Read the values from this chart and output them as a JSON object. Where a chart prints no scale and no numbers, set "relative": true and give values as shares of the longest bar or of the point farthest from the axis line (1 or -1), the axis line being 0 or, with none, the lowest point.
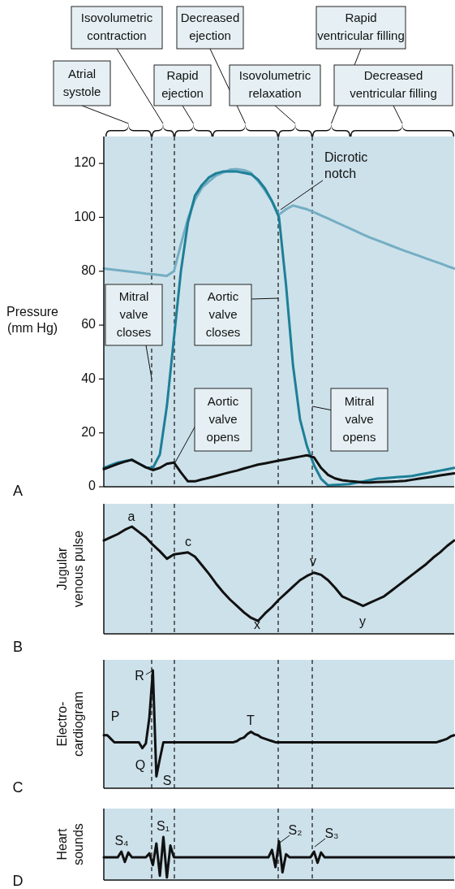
{
  "chart_data": [
    {
      "type": "line",
      "grid": "x",
      "ylabel": "Pressure\n(mm Hg)",
      "ylim": [
        0,
        130
      ],
      "yticks": [
        0,
        20,
        40,
        60,
        80,
        100,
        120
      ],
      "tick_labels": "y",
      "categories": [
        null,
        null,
        null,
        null,
        null,
        null,
        null,
        null,
        null,
        null,
        null,
        null,
        null,
        null,
        null,
        null,
        null,
        null,
        null,
        null,
        null,
        null,
        null,
        null,
        null,
        null,
        null,
        null,
        null,
        null,
        null,
        null,
        null,
        null,
        null,
        null,
        null,
        null,
        null,
        null,
        null,
        null,
        null,
        null,
        null,
        null,
        null,
        null,
        null,
        null,
        null
      ],
      "series": [
        {
          "color": "#74aec3",
          "values": [
            81,
            80.7,
            80.4,
            80.1,
            79.8,
            79.5,
            79.1,
            78.9,
            78.6,
            78.3,
            80,
            90,
            99.5,
            106.5,
            111,
            113.3,
            115.5,
            116.6,
            117.7,
            117.9,
            117.5,
            116.5,
            113.5,
            110,
            106,
            101,
            103,
            104.4,
            103.7,
            103,
            101.9,
            100.7,
            99.6,
            98.4,
            97.2,
            96,
            94.8,
            93.6,
            92.5,
            91.5,
            90.5,
            89.5,
            88.5,
            87.5,
            86.6,
            85.7,
            84.7,
            83.8,
            82.9,
            81.9,
            81
          ]
        },
        {
          "color": "#1d7f97",
          "values": [
            7,
            8,
            9,
            9.5,
            10,
            8.6,
            7.2,
            7,
            12,
            30,
            55,
            80,
            98,
            108,
            112,
            114.8,
            116.3,
            117,
            117,
            117,
            116.5,
            116,
            114,
            110.7,
            106,
            100,
            75,
            45,
            25,
            15,
            8,
            3,
            0.5,
            0.7,
            0.8,
            1,
            1.5,
            2,
            2.5,
            3,
            3.2,
            3.4,
            3.6,
            3.8,
            4,
            4.5,
            5,
            5.5,
            6,
            6.5,
            7
          ]
        },
        {
          "color": "#111111",
          "values": [
            6.5,
            7.5,
            8.5,
            9.3,
            10,
            8.6,
            7.2,
            6.2,
            7,
            8.5,
            9,
            5.3,
            2,
            2,
            2.7,
            3.3,
            4,
            4.7,
            5.4,
            6,
            6.8,
            7.5,
            8.2,
            8.7,
            9.2,
            9.7,
            10.2,
            10.7,
            11.2,
            11.7,
            10.9,
            7,
            4.4,
            3.1,
            2.4,
            2.1,
            1.9,
            1.6,
            1.6,
            1.7,
            1.8,
            1.9,
            2,
            2.2,
            2.6,
            3,
            3.4,
            3.8,
            4.2,
            4.6,
            5
          ]
        }
      ],
      "annotations": [
        "Atrial\nsystole",
        "Isovolumetric\ncontraction",
        "Rapid\nejection",
        "Decreased\nejection",
        "Isovolumetric\nrelaxation",
        "Rapid\nventricular filling",
        "Decreased\nventricular filling",
        "Dicrotic\nnotch",
        "Mitral\nvalve\ncloses",
        "Aortic\nvalve\ncloses",
        "Aortic\nvalve\nopens",
        "Mitral\nvalve\nopens",
        "A"
      ]
    },
    {
      "type": "line",
      "grid": "x",
      "relative": true,
      "ylabel": "Jugular\nvenous pulse",
      "tick_labels": false,
      "categories": [
        null,
        null,
        null,
        null,
        null,
        null,
        null,
        null,
        null,
        null,
        null,
        null,
        null,
        null,
        null,
        null,
        null,
        null,
        null,
        null,
        null,
        null,
        null,
        null,
        null,
        null,
        null,
        null,
        null,
        null,
        null,
        null,
        null,
        null,
        null,
        null,
        null,
        null,
        null,
        null,
        null,
        null,
        null,
        null,
        null,
        null,
        null,
        null,
        null,
        null,
        null
      ],
      "series": [
        {
          "color": "#111111",
          "values": [
            0.87,
            0.9,
            0.93,
            0.97,
            1,
            0.95,
            0.9,
            0.83,
            0.77,
            0.7,
            0.74,
            0.75,
            0.76,
            0.72,
            0.64,
            0.56,
            0.47,
            0.39,
            0.32,
            0.26,
            0.2,
            0.15,
            0.12,
            0.19,
            0.25,
            0.32,
            0.38,
            0.44,
            0.5,
            0.54,
            0.57,
            0.55,
            0.5,
            0.43,
            0.35,
            0.32,
            0.29,
            0.26,
            0.29,
            0.32,
            0.35,
            0.4,
            0.45,
            0.5,
            0.55,
            0.6,
            0.65,
            0.71,
            0.76,
            0.82,
            0.87
          ]
        }
      ],
      "annotations": [
        "a",
        "c",
        "x",
        "v",
        "y",
        "B"
      ]
    },
    {
      "type": "line",
      "grid": "x",
      "relative": true,
      "ylabel": "Electro-\ncardiogram",
      "tick_labels": false,
      "categories": [
        null,
        null,
        null,
        null,
        null,
        null,
        null,
        null,
        null,
        null,
        null,
        null,
        null,
        null,
        null,
        null,
        null,
        null,
        null,
        null,
        null,
        null,
        null,
        null,
        null,
        null,
        null,
        null,
        null,
        null,
        null,
        null,
        null,
        null,
        null,
        null,
        null,
        null,
        null,
        null,
        null,
        null,
        null,
        null,
        null,
        null,
        null,
        null,
        null,
        null,
        null,
        null,
        null,
        null,
        null,
        null,
        null,
        null,
        null,
        null,
        null,
        null,
        null,
        null,
        null,
        null,
        null,
        null,
        null,
        null,
        null,
        null,
        null,
        null,
        null,
        null,
        null,
        null,
        null,
        null,
        null,
        null,
        null,
        null,
        null,
        null,
        null,
        null,
        null,
        null,
        null,
        null,
        null,
        null,
        null,
        null,
        null,
        null,
        null,
        null,
        null
      ],
      "series": [
        {
          "color": "#111111",
          "values": [
            0.45,
            0.45,
            0.42,
            0.39,
            0.39,
            0.39,
            0.39,
            0.39,
            0.39,
            0.39,
            0.39,
            0.34,
            0.38,
            0.6,
            1,
            0.1,
            0.25,
            0.39,
            0.39,
            0.39,
            0.39,
            0.39,
            0.39,
            0.39,
            0.39,
            0.39,
            0.39,
            0.39,
            0.39,
            0.39,
            0.39,
            0.39,
            0.39,
            0.39,
            0.39,
            0.39,
            0.39,
            0.39,
            0.4,
            0.42,
            0.43,
            0.46,
            0.48,
            0.46,
            0.45,
            0.43,
            0.42,
            0.41,
            0.4,
            0.39,
            0.39,
            0.39,
            0.39,
            0.39,
            0.39,
            0.39,
            0.39,
            0.39,
            0.39,
            0.39,
            0.39,
            0.39,
            0.39,
            0.39,
            0.39,
            0.39,
            0.39,
            0.39,
            0.39,
            0.39,
            0.39,
            0.39,
            0.39,
            0.39,
            0.39,
            0.39,
            0.39,
            0.39,
            0.39,
            0.39,
            0.39,
            0.39,
            0.39,
            0.39,
            0.39,
            0.39,
            0.39,
            0.39,
            0.39,
            0.39,
            0.39,
            0.39,
            0.39,
            0.39,
            0.39,
            0.39,
            0.4,
            0.41,
            0.42,
            0.44,
            0.45
          ]
        }
      ],
      "annotations": [
        "P",
        "R",
        "Q",
        "S",
        "T",
        "C"
      ]
    },
    {
      "type": "line",
      "grid": "x",
      "relative": true,
      "ylabel": "Heart\nsounds",
      "tick_labels": false,
      "categories": [
        null,
        null,
        null,
        null,
        null,
        null,
        null,
        null,
        null,
        null,
        null,
        null,
        null,
        null,
        null,
        null,
        null,
        null,
        null,
        null,
        null,
        null,
        null,
        null,
        null,
        null,
        null,
        null,
        null,
        null,
        null,
        null,
        null,
        null,
        null,
        null,
        null,
        null,
        null,
        null,
        null,
        null,
        null,
        null,
        null,
        null,
        null,
        null,
        null,
        null,
        null,
        null,
        null,
        null,
        null,
        null,
        null,
        null,
        null,
        null,
        null,
        null,
        null,
        null,
        null,
        null,
        null,
        null,
        null,
        null,
        null,
        null,
        null,
        null,
        null,
        null,
        null,
        null,
        null,
        null,
        null,
        null,
        null,
        null,
        null,
        null,
        null,
        null,
        null,
        null,
        null,
        null,
        null,
        null,
        null,
        null,
        null,
        null,
        null,
        null,
        null
      ],
      "series": [
        {
          "color": "#111111",
          "values": [
            0.53,
            0.53,
            0.53,
            0.53,
            0.53,
            0.66,
            0.42,
            0.64,
            0.53,
            0.53,
            0.53,
            0.53,
            0.53,
            0.62,
            0.35,
            0.85,
            0.1,
            1,
            0.06,
            0.8,
            0.53,
            0.53,
            0.53,
            0.53,
            0.53,
            0.53,
            0.53,
            0.53,
            0.53,
            0.53,
            0.53,
            0.53,
            0.53,
            0.53,
            0.53,
            0.53,
            0.53,
            0.53,
            0.53,
            0.53,
            0.53,
            0.53,
            0.53,
            0.53,
            0.53,
            0.53,
            0.53,
            0.53,
            0.7,
            0.3,
            0.9,
            0.18,
            0.6,
            0.53,
            0.53,
            0.53,
            0.53,
            0.53,
            0.53,
            0.53,
            0.66,
            0.4,
            0.64,
            0.53,
            0.53,
            0.53,
            0.53,
            0.53,
            0.53,
            0.53,
            0.53,
            0.53,
            0.53,
            0.53,
            0.53,
            0.53,
            0.53,
            0.53,
            0.53,
            0.53,
            0.53,
            0.53,
            0.53,
            0.53,
            0.53,
            0.53,
            0.53,
            0.53,
            0.53,
            0.53,
            0.53,
            0.53,
            0.53,
            0.53,
            0.53,
            0.53,
            0.53,
            0.53,
            0.53,
            0.53,
            0.53
          ]
        }
      ],
      "annotations": [
        "S₄",
        "S₁",
        "S₂",
        "S₃",
        "D"
      ]
    }
  ]
}
